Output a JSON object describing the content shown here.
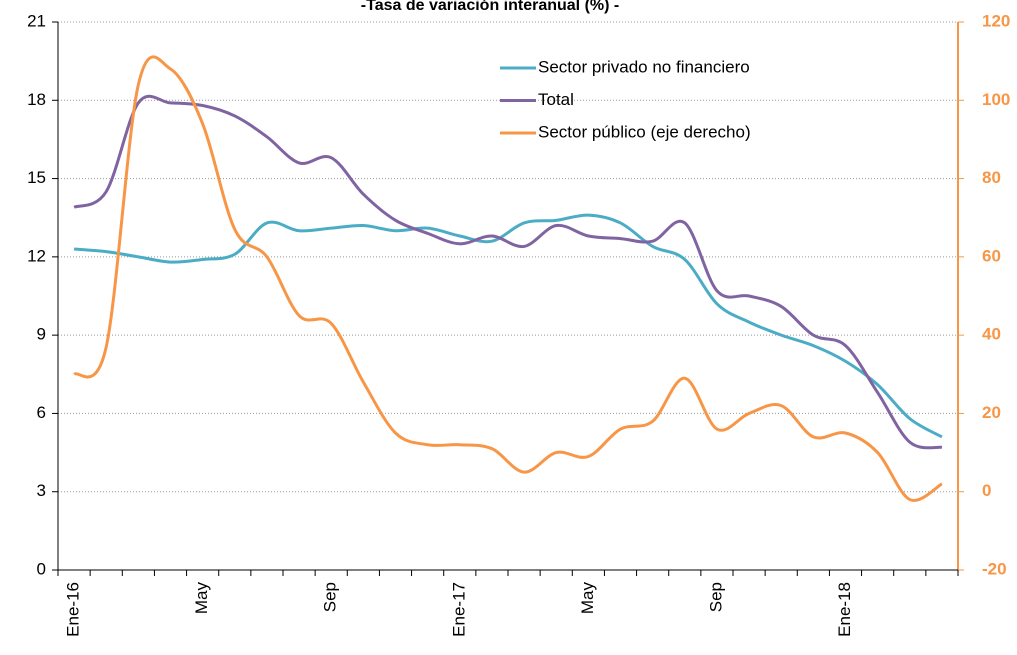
{
  "chart_data": {
    "type": "line",
    "title": "-Tasa de variación interanual (%) -",
    "categories": [
      "Ene-16",
      null,
      null,
      null,
      "May",
      null,
      null,
      null,
      "Sep",
      null,
      null,
      null,
      "Ene-17",
      null,
      null,
      null,
      "May",
      null,
      null,
      null,
      "Sep",
      null,
      null,
      null,
      "Ene-18",
      null,
      null,
      null
    ],
    "series": [
      {
        "name": "Sector privado no financiero",
        "color": "#4bacc6",
        "values": [
          12.3,
          12.2,
          12.0,
          11.8,
          11.9,
          12.1,
          13.3,
          13.0,
          13.1,
          13.2,
          13.0,
          13.1,
          12.8,
          12.6,
          13.3,
          13.4,
          13.6,
          13.3,
          12.4,
          11.9,
          10.2,
          9.5,
          9.0,
          8.6,
          8.0,
          7.1,
          5.8,
          5.1
        ]
      },
      {
        "name": "Total",
        "color": "#8064a2",
        "values": [
          13.9,
          14.5,
          17.9,
          17.9,
          17.8,
          17.4,
          16.6,
          15.6,
          15.8,
          14.4,
          13.4,
          12.9,
          12.5,
          12.8,
          12.4,
          13.2,
          12.8,
          12.7,
          12.6,
          13.3,
          10.7,
          10.5,
          10.1,
          9.0,
          8.6,
          6.8,
          4.9,
          4.7
        ]
      },
      {
        "name": "Sector público (eje derecho)",
        "color": "#f79646",
        "axis": "y2",
        "values": [
          30,
          37,
          104,
          108,
          94,
          67,
          60,
          45,
          43,
          28,
          15,
          12,
          12,
          11,
          5,
          10,
          9,
          16,
          18,
          29,
          16,
          20,
          22,
          14,
          15,
          10,
          -2,
          2
        ]
      }
    ],
    "ylim": [
      0,
      21
    ],
    "yticks": [
      0,
      3,
      6,
      9,
      12,
      15,
      18,
      21
    ],
    "y2lim": [
      -20,
      120
    ],
    "y2ticks": [
      -20,
      0,
      20,
      40,
      60,
      80,
      100,
      120
    ],
    "grid": true,
    "legend": "top-right"
  }
}
